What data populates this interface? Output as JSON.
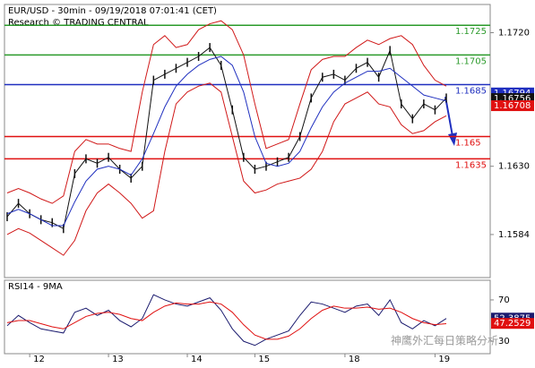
{
  "chart_data": [
    {
      "type": "line",
      "title": "EUR/USD - 30min - 09/19/2018 07:01:41 (CET)",
      "subtitle": "Research © TRADING CENTRAL",
      "ylim": [
        1.1555,
        1.1739
      ],
      "yticks": [
        {
          "value": 1.172,
          "label": "1.1720"
        },
        {
          "value": 1.163,
          "label": "1.1630"
        },
        1.1584
      ],
      "levels": [
        {
          "value": 1.1725,
          "color": "#2a9a2a"
        },
        {
          "value": 1.1705,
          "color": "#2a9a2a"
        },
        {
          "value": 1.1685,
          "color": "#1f2fbf"
        },
        {
          "value": 1.165,
          "color": "#e01010"
        },
        {
          "value": 1.1635,
          "color": "#e01010"
        }
      ],
      "price_tags": [
        {
          "value": 1.16794,
          "color": "#1f2fbf"
        },
        {
          "value": 1.16756,
          "color": "#111111"
        },
        {
          "value": 1.16708,
          "color": "#e01010"
        }
      ],
      "series": [
        {
          "color": "#111111",
          "values": [
            1.1596,
            1.1605,
            1.1598,
            1.1594,
            1.1592,
            1.1588,
            1.1625,
            1.1635,
            1.1632,
            1.1636,
            1.1628,
            1.1622,
            1.163,
            1.1688,
            1.1692,
            1.1696,
            1.17,
            1.1704,
            1.171,
            1.1698,
            1.1668,
            1.1636,
            1.1628,
            1.163,
            1.1633,
            1.1636,
            1.165,
            1.1676,
            1.169,
            1.1692,
            1.1688,
            1.1696,
            1.17,
            1.169,
            1.1708,
            1.1672,
            1.1662,
            1.1672,
            1.1668,
            1.1676
          ]
        },
        {
          "color": "#d01818",
          "values": [
            1.1612,
            1.1615,
            1.1612,
            1.1608,
            1.1605,
            1.161,
            1.164,
            1.1648,
            1.1645,
            1.1645,
            1.1642,
            1.164,
            1.168,
            1.1712,
            1.1718,
            1.171,
            1.1712,
            1.1722,
            1.1726,
            1.1728,
            1.1722,
            1.1705,
            1.1672,
            1.1642,
            1.1645,
            1.1648,
            1.1672,
            1.1695,
            1.1702,
            1.1704,
            1.1704,
            1.171,
            1.1715,
            1.1712,
            1.1716,
            1.1718,
            1.1712,
            1.1698,
            1.1688,
            1.1684
          ]
        },
        {
          "color": "#d01818",
          "values": [
            1.1584,
            1.1588,
            1.1585,
            1.158,
            1.1575,
            1.157,
            1.158,
            1.16,
            1.1612,
            1.1618,
            1.1612,
            1.1605,
            1.1595,
            1.16,
            1.164,
            1.1672,
            1.168,
            1.1684,
            1.1686,
            1.168,
            1.165,
            1.162,
            1.1612,
            1.1614,
            1.1618,
            1.162,
            1.1622,
            1.1628,
            1.164,
            1.166,
            1.1672,
            1.1676,
            1.168,
            1.1672,
            1.167,
            1.1658,
            1.1652,
            1.1654,
            1.166,
            1.1664
          ]
        },
        {
          "color": "#1f2fbf",
          "values": [
            1.1598,
            1.1601,
            1.1598,
            1.1594,
            1.159,
            1.159,
            1.1606,
            1.162,
            1.1628,
            1.163,
            1.1628,
            1.1624,
            1.1635,
            1.1652,
            1.167,
            1.1684,
            1.1692,
            1.1698,
            1.1702,
            1.1704,
            1.1698,
            1.168,
            1.165,
            1.1632,
            1.163,
            1.1632,
            1.164,
            1.1656,
            1.167,
            1.168,
            1.1686,
            1.169,
            1.1694,
            1.1694,
            1.1696,
            1.169,
            1.1684,
            1.1678,
            1.1676,
            1.1674
          ]
        }
      ]
    },
    {
      "type": "line",
      "title": "RSI14 - 9MA",
      "ylim": [
        18,
        89
      ],
      "yticks": [
        70,
        30
      ],
      "categories": [
        null,
        null,
        "12",
        null,
        null,
        null,
        null,
        null,
        null,
        "13",
        null,
        null,
        null,
        null,
        null,
        null,
        "14",
        null,
        null,
        null,
        null,
        null,
        "15",
        null,
        null,
        null,
        null,
        null,
        null,
        null,
        "18",
        null,
        null,
        null,
        null,
        null,
        null,
        null,
        "19",
        null
      ],
      "price_tags": [
        {
          "value": 52.3875,
          "color": "#1a1a6e"
        },
        {
          "value": 47.2529,
          "color": "#e01010"
        }
      ],
      "series": [
        {
          "color": "#1a1a6e",
          "values": [
            45,
            55,
            48,
            42,
            40,
            38,
            58,
            62,
            55,
            60,
            50,
            44,
            52,
            75,
            70,
            66,
            64,
            68,
            72,
            60,
            42,
            30,
            26,
            32,
            36,
            40,
            55,
            68,
            66,
            62,
            58,
            64,
            66,
            55,
            70,
            48,
            42,
            50,
            45,
            52
          ]
        },
        {
          "color": "#e01010",
          "values": [
            48,
            50,
            50,
            47,
            44,
            42,
            48,
            54,
            57,
            58,
            56,
            52,
            50,
            58,
            64,
            67,
            66,
            66,
            68,
            66,
            58,
            46,
            36,
            32,
            32,
            35,
            42,
            52,
            60,
            64,
            62,
            62,
            63,
            61,
            62,
            58,
            52,
            48,
            46,
            47
          ]
        }
      ]
    }
  ]
}
